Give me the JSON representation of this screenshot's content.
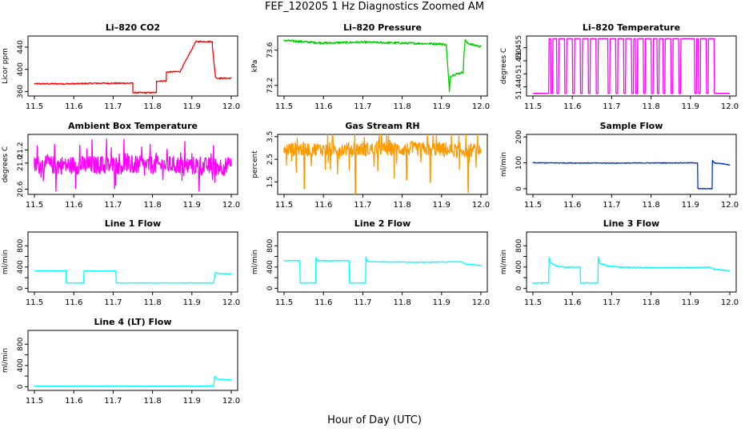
{
  "figure": {
    "title": "FEF_120205  1 Hz Diagnostics Zoomed AM",
    "xlabel": "Hour of Day (UTC)"
  },
  "chart_data": [
    {
      "type": "line",
      "title": "Li–820 CO2",
      "ylabel": "Licor ppm",
      "color": "#ff0000",
      "xlim": [
        11.5,
        12.0
      ],
      "ylim": [
        352,
        460
      ],
      "xticks": [
        "11.5",
        "11.6",
        "11.7",
        "11.8",
        "11.9",
        "12.0"
      ],
      "yticks": [
        {
          "v": 360,
          "label": "360"
        },
        {
          "v": 400,
          "label": "400"
        },
        {
          "v": 440,
          "label": "440"
        }
      ],
      "noise": 1.2,
      "spike_amp": 0,
      "x": [
        11.5,
        11.6,
        11.66,
        11.75,
        11.7501,
        11.81,
        11.8101,
        11.835,
        11.8351,
        11.87,
        11.91,
        11.952,
        11.9521,
        11.96,
        11.965,
        11.975,
        12.0
      ],
      "y": [
        374,
        374,
        375,
        375,
        358,
        358,
        379,
        379,
        395,
        396,
        450,
        450,
        440,
        386,
        384,
        384,
        384
      ]
    },
    {
      "type": "line",
      "title": "Li–820 Pressure",
      "ylabel": "kPa",
      "color": "#00cc00",
      "xlim": [
        11.5,
        12.0
      ],
      "ylim": [
        73.08,
        73.76
      ],
      "xticks": [
        "11.5",
        "11.6",
        "11.7",
        "11.8",
        "11.9",
        "12.0"
      ],
      "yticks": [
        {
          "v": 73.2,
          "label": "73.2"
        },
        {
          "v": 73.6,
          "label": "73.6"
        }
      ],
      "noise": 0.012,
      "spike_amp": 0,
      "x": [
        11.5,
        11.6,
        11.7,
        11.8,
        11.9,
        11.912,
        11.92,
        11.922,
        11.93,
        11.955,
        11.957,
        11.96,
        11.965,
        11.98,
        12.0
      ],
      "y": [
        73.71,
        73.68,
        73.69,
        73.68,
        73.67,
        73.66,
        73.13,
        73.3,
        73.32,
        73.35,
        73.55,
        73.72,
        73.68,
        73.66,
        73.64
      ]
    },
    {
      "type": "line",
      "title": "Li–820 Temperature",
      "ylabel": "degrees C",
      "color": "#ff00ff",
      "xlim": [
        11.5,
        12.0
      ],
      "ylim": [
        51.4365,
        51.4595
      ],
      "xticks": [
        "11.5",
        "11.6",
        "11.7",
        "11.8",
        "11.9",
        "12.0"
      ],
      "yticks": [
        {
          "v": 51.44,
          "label": "51.440"
        },
        {
          "v": 51.445,
          "label": ""
        },
        {
          "v": 51.45,
          "label": "51.450"
        },
        {
          "v": 51.455,
          "label": "51.455"
        }
      ],
      "noise": 0,
      "spike_amp": 0,
      "x": [
        11.5,
        11.54,
        11.541,
        11.545,
        11.546,
        11.55,
        11.551,
        11.56,
        11.561,
        11.565,
        11.566,
        11.58,
        11.581,
        11.585,
        11.586,
        11.6,
        11.601,
        11.605,
        11.606,
        11.62,
        11.621,
        11.625,
        11.626,
        11.64,
        11.641,
        11.645,
        11.646,
        11.66,
        11.661,
        11.665,
        11.666,
        11.69,
        11.691,
        11.695,
        11.696,
        11.71,
        11.711,
        11.715,
        11.716,
        11.73,
        11.731,
        11.735,
        11.736,
        11.75,
        11.751,
        11.755,
        11.756,
        11.76,
        11.761,
        11.765,
        11.766,
        11.78,
        11.781,
        11.785,
        11.786,
        11.8,
        11.801,
        11.805,
        11.806,
        11.815,
        11.816,
        11.82,
        11.821,
        11.83,
        11.831,
        11.835,
        11.836,
        11.85,
        11.851,
        11.855,
        11.856,
        11.87,
        11.871,
        11.875,
        11.876,
        11.91,
        11.911,
        11.915,
        11.916,
        11.92,
        11.921,
        11.925,
        11.926,
        11.94,
        11.941,
        11.945,
        11.946,
        11.96,
        11.961,
        11.965,
        11.966,
        12.0
      ],
      "y": [
        51.4375,
        51.4375,
        51.4585,
        51.4585,
        51.4375,
        51.4375,
        51.4585,
        51.4585,
        51.4375,
        51.4375,
        51.4585,
        51.4585,
        51.4375,
        51.4375,
        51.4585,
        51.4585,
        51.4375,
        51.4375,
        51.4585,
        51.4585,
        51.4375,
        51.4375,
        51.4585,
        51.4585,
        51.4375,
        51.4375,
        51.4585,
        51.4585,
        51.4375,
        51.4375,
        51.4585,
        51.4585,
        51.4375,
        51.4375,
        51.4585,
        51.4585,
        51.4375,
        51.4375,
        51.4585,
        51.4585,
        51.4375,
        51.4375,
        51.4585,
        51.4585,
        51.4375,
        51.4375,
        51.4585,
        51.4585,
        51.4375,
        51.4375,
        51.4585,
        51.4585,
        51.4375,
        51.4375,
        51.4585,
        51.4585,
        51.4375,
        51.4375,
        51.4585,
        51.4585,
        51.4375,
        51.4375,
        51.4585,
        51.4585,
        51.4375,
        51.4375,
        51.4585,
        51.4585,
        51.4375,
        51.4375,
        51.4585,
        51.4585,
        51.4375,
        51.4375,
        51.4585,
        51.4585,
        51.4375,
        51.4375,
        51.4585,
        51.4585,
        51.4375,
        51.4375,
        51.4585,
        51.4585,
        51.4375,
        51.4375,
        51.4585,
        51.4585,
        51.4375,
        51.4375,
        51.4375,
        51.4375
      ]
    },
    {
      "type": "line",
      "title": "Ambient Box Temperature",
      "ylabel": "degrees C",
      "color": "#ff00ff",
      "xlim": [
        11.5,
        12.0
      ],
      "ylim": [
        20.52,
        21.44
      ],
      "xticks": [
        "11.5",
        "11.6",
        "11.7",
        "11.8",
        "11.9",
        "12.0"
      ],
      "yticks": [
        {
          "v": 20.6,
          "label": "20.6"
        },
        {
          "v": 21.0,
          "label": "21.0"
        },
        {
          "v": 21.2,
          "label": "21.2"
        }
      ],
      "noise": 0.14,
      "spike_amp": 0.3,
      "x": [
        11.5,
        11.875,
        11.876,
        11.915,
        11.916,
        12.0
      ],
      "y": [
        20.97,
        20.97,
        20.96,
        20.96,
        20.95,
        20.95
      ]
    },
    {
      "type": "line",
      "title": "Gas Stream RH",
      "ylabel": "percent",
      "color": "#ff9900",
      "xlim": [
        11.5,
        12.0
      ],
      "ylim": [
        0.95,
        3.6
      ],
      "xticks": [
        "11.5",
        "11.6",
        "11.7",
        "11.8",
        "11.9",
        "12.0"
      ],
      "yticks": [
        {
          "v": 1.5,
          "label": "1.5"
        },
        {
          "v": 2.5,
          "label": "2.5"
        },
        {
          "v": 3.5,
          "label": "3.5"
        }
      ],
      "noise": 0.3,
      "spike_amp": 1.2,
      "x": [
        11.5,
        11.55,
        11.551,
        11.552,
        11.553,
        11.68,
        11.681,
        11.682,
        11.683,
        11.81,
        11.811,
        11.812,
        11.813,
        11.87,
        11.871,
        11.872,
        11.873,
        11.915,
        11.916,
        11.966,
        11.967,
        11.968,
        11.969,
        12.0
      ],
      "y": [
        2.95,
        2.95,
        1.2,
        1.2,
        2.95,
        2.95,
        1.0,
        1.0,
        2.95,
        2.95,
        1.6,
        1.6,
        2.95,
        2.95,
        1.5,
        1.5,
        2.95,
        2.95,
        2.9,
        2.9,
        1.25,
        1.25,
        2.9,
        2.9
      ]
    },
    {
      "type": "line",
      "title": "Sample Flow",
      "ylabel": "ml/min",
      "color": "#0033cc",
      "xlim": [
        11.5,
        12.0
      ],
      "ylim": [
        -22,
        210
      ],
      "xticks": [
        "11.5",
        "11.6",
        "11.7",
        "11.8",
        "11.9",
        "12.0"
      ],
      "yticks": [
        {
          "v": 0,
          "label": "0"
        },
        {
          "v": 100,
          "label": "100"
        },
        {
          "v": 200,
          "label": "200"
        }
      ],
      "noise": 1.5,
      "spike_amp": 0,
      "x": [
        11.5,
        11.7,
        11.9,
        11.913,
        11.918,
        11.919,
        11.955,
        11.956,
        11.96,
        11.98,
        12.0
      ],
      "y": [
        100,
        99,
        100,
        100,
        100,
        0,
        0,
        110,
        100,
        97,
        92
      ]
    },
    {
      "type": "line",
      "title": "Line 1 Flow",
      "ylabel": "ml/min",
      "color": "#00ffff",
      "xlim": [
        11.5,
        12.0
      ],
      "ylim": [
        -70,
        1060
      ],
      "xticks": [
        "11.5",
        "11.6",
        "11.7",
        "11.8",
        "11.9",
        "12.0"
      ],
      "yticks": [
        {
          "v": 0,
          "label": "0"
        },
        {
          "v": 200,
          "label": ""
        },
        {
          "v": 400,
          "label": "400"
        },
        {
          "v": 600,
          "label": ""
        },
        {
          "v": 800,
          "label": "800"
        }
      ],
      "noise": 5,
      "spike_amp": 0,
      "x": [
        11.5,
        11.58,
        11.581,
        11.625,
        11.626,
        11.707,
        11.708,
        11.955,
        11.956,
        11.96,
        11.965,
        12.0
      ],
      "y": [
        330,
        330,
        100,
        100,
        325,
        325,
        100,
        100,
        150,
        300,
        280,
        270
      ]
    },
    {
      "type": "line",
      "title": "Line 2 Flow",
      "ylabel": "ml/min",
      "color": "#00ffff",
      "xlim": [
        11.5,
        12.0
      ],
      "ylim": [
        -70,
        1060
      ],
      "xticks": [
        "11.5",
        "11.6",
        "11.7",
        "11.8",
        "11.9",
        "12.0"
      ],
      "yticks": [
        {
          "v": 0,
          "label": "0"
        },
        {
          "v": 200,
          "label": ""
        },
        {
          "v": 400,
          "label": "400"
        },
        {
          "v": 600,
          "label": ""
        },
        {
          "v": 800,
          "label": "800"
        }
      ],
      "noise": 6,
      "spike_amp": 0,
      "x": [
        11.5,
        11.54,
        11.541,
        11.58,
        11.581,
        11.585,
        11.665,
        11.666,
        11.707,
        11.708,
        11.712,
        11.85,
        11.95,
        11.96,
        12.0
      ],
      "y": [
        520,
        520,
        100,
        100,
        580,
        520,
        520,
        100,
        100,
        590,
        500,
        490,
        500,
        460,
        430
      ]
    },
    {
      "type": "line",
      "title": "Line 3 Flow",
      "ylabel": "ml/min",
      "color": "#00ffff",
      "xlim": [
        11.5,
        12.0
      ],
      "ylim": [
        -70,
        1060
      ],
      "xticks": [
        "11.5",
        "11.6",
        "11.7",
        "11.8",
        "11.9",
        "12.0"
      ],
      "yticks": [
        {
          "v": 0,
          "label": "0"
        },
        {
          "v": 200,
          "label": ""
        },
        {
          "v": 400,
          "label": "400"
        },
        {
          "v": 600,
          "label": ""
        },
        {
          "v": 800,
          "label": "800"
        }
      ],
      "noise": 8,
      "spike_amp": 0,
      "x": [
        11.5,
        11.54,
        11.541,
        11.545,
        11.56,
        11.58,
        11.62,
        11.621,
        11.665,
        11.666,
        11.67,
        11.69,
        11.72,
        11.8,
        11.9,
        11.95,
        11.96,
        12.0
      ],
      "y": [
        100,
        100,
        580,
        480,
        420,
        400,
        400,
        100,
        100,
        590,
        470,
        420,
        400,
        390,
        390,
        400,
        360,
        330
      ]
    },
    {
      "type": "line",
      "title": "Line 4 (LT) Flow",
      "ylabel": "ml/min",
      "color": "#00ffff",
      "xlim": [
        11.5,
        12.0
      ],
      "ylim": [
        -70,
        1060
      ],
      "xticks": [
        "11.5",
        "11.6",
        "11.7",
        "11.8",
        "11.9",
        "12.0"
      ],
      "yticks": [
        {
          "v": 0,
          "label": "0"
        },
        {
          "v": 200,
          "label": ""
        },
        {
          "v": 400,
          "label": "400"
        },
        {
          "v": 600,
          "label": ""
        },
        {
          "v": 800,
          "label": "800"
        }
      ],
      "noise": 3,
      "spike_amp": 0,
      "x": [
        11.5,
        11.955,
        11.956,
        11.958,
        11.965,
        12.0
      ],
      "y": [
        10,
        10,
        60,
        190,
        140,
        130
      ]
    }
  ]
}
